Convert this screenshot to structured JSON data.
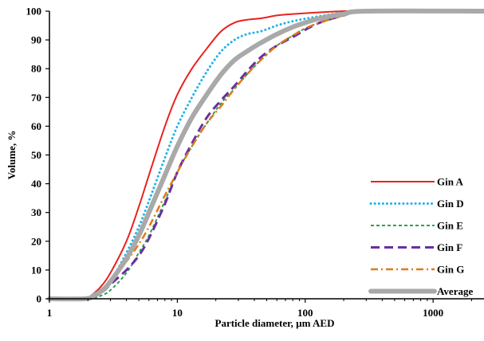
{
  "chart_data": {
    "type": "line",
    "title": "",
    "xlabel": "Particle diameter, µm AED",
    "ylabel": "Volume, %",
    "x_scale": "log",
    "xlim": [
      1,
      2500
    ],
    "ylim": [
      0,
      100
    ],
    "x_ticks": [
      "1",
      "10",
      "100",
      "1000"
    ],
    "y_ticks": [
      "0",
      "10",
      "20",
      "30",
      "40",
      "50",
      "60",
      "70",
      "80",
      "90",
      "100"
    ],
    "grid": false,
    "legend_position": "bottom-right",
    "series": [
      {
        "name": "Gin A",
        "color": "#e8231f",
        "style": "solid",
        "x": [
          1,
          1.9,
          2.1,
          2.5,
          3,
          4,
          5,
          6,
          8,
          10,
          13,
          17,
          22,
          28,
          35,
          45,
          60,
          80,
          120,
          200,
          300,
          2500
        ],
        "y": [
          0,
          0,
          1,
          4,
          9,
          20,
          32,
          43,
          60,
          71,
          80,
          87,
          93,
          96,
          97,
          97.5,
          98.5,
          99,
          99.5,
          100,
          100,
          100
        ]
      },
      {
        "name": "Gin D",
        "color": "#1fb4e8",
        "style": "dotted",
        "x": [
          1,
          1.9,
          2.2,
          2.6,
          3,
          4,
          5,
          6,
          8,
          10,
          13,
          17,
          22,
          28,
          35,
          45,
          60,
          80,
          120,
          200,
          300,
          2500
        ],
        "y": [
          0,
          0,
          1,
          3,
          6,
          16,
          25,
          34,
          49,
          60,
          70,
          79,
          86,
          90,
          92,
          93,
          95,
          96.5,
          98,
          99.5,
          100,
          100
        ]
      },
      {
        "name": "Gin E",
        "color": "#2ca24a",
        "style": "dashed",
        "x": [
          1,
          2,
          2.5,
          3,
          4,
          5,
          6,
          8,
          10,
          13,
          17,
          22,
          28,
          35,
          45,
          60,
          80,
          100,
          130,
          200,
          300,
          2500
        ],
        "y": [
          0,
          0,
          1,
          3,
          9,
          16,
          22,
          34,
          44,
          53,
          61,
          68,
          73,
          78,
          83,
          88,
          91.5,
          94,
          96,
          98.5,
          100,
          100
        ]
      },
      {
        "name": "Gin F",
        "color": "#6a2fa0",
        "style": "longdash",
        "x": [
          1,
          1.9,
          2.3,
          2.7,
          3,
          4,
          5,
          6,
          8,
          10,
          13,
          17,
          22,
          28,
          35,
          45,
          60,
          80,
          100,
          130,
          200,
          300,
          2500
        ],
        "y": [
          0,
          0,
          1,
          3,
          5,
          10,
          15,
          21,
          33,
          44,
          54,
          63,
          69,
          74,
          79,
          84,
          88,
          91,
          93.5,
          96,
          98.5,
          100,
          100
        ]
      },
      {
        "name": "Gin G",
        "color": "#e07a1a",
        "style": "dashdot",
        "x": [
          1,
          1.9,
          2.3,
          2.7,
          3,
          4,
          5,
          6,
          8,
          10,
          13,
          17,
          22,
          28,
          35,
          45,
          60,
          80,
          100,
          130,
          200,
          300,
          2500
        ],
        "y": [
          0,
          0,
          1,
          3,
          6,
          13,
          19,
          25,
          36,
          44,
          53,
          61,
          67,
          73,
          78,
          83,
          88,
          91.5,
          94,
          96,
          98.5,
          100,
          100
        ]
      },
      {
        "name": "Average",
        "color": "#a9a9a9",
        "style": "thick",
        "x": [
          1,
          1.9,
          2.2,
          2.6,
          3,
          4,
          5,
          6,
          8,
          10,
          13,
          17,
          22,
          28,
          35,
          45,
          60,
          80,
          100,
          130,
          200,
          300,
          2500
        ],
        "y": [
          0,
          0,
          1,
          3,
          6,
          14,
          22,
          30,
          43,
          53,
          63,
          71,
          78,
          83,
          86,
          89,
          92,
          94.5,
          96,
          97.5,
          99,
          100,
          100
        ]
      }
    ]
  }
}
